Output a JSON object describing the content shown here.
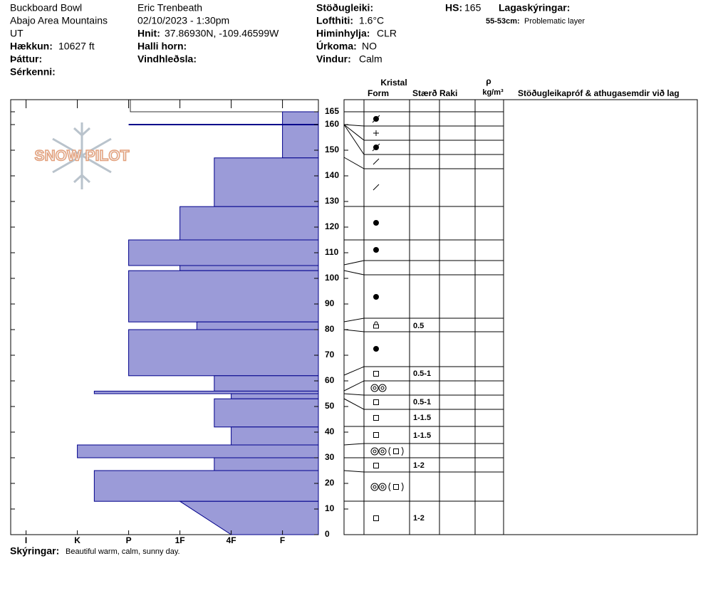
{
  "header": {
    "location": "Buckboard Bowl",
    "range": "Abajo Area Mountains",
    "state": "UT",
    "elevation_label": "Hækkun:",
    "elevation": "10627 ft",
    "aspect_label": "Þáttur:",
    "features_label": "Sérkenni:",
    "observer": "Eric Trenbeath",
    "datetime": "02/10/2023 - 1:30pm",
    "coords_label": "Hnit:",
    "coords": "37.86930N, -109.46599W",
    "slope_label": "Halli horn:",
    "wind_loading_label": "Vindhleðsla:",
    "stability_label": "Stöðugleiki:",
    "air_temp_label": "Lofthiti:",
    "air_temp": "1.6°C",
    "sky_label": "Himinhylja:",
    "sky": "CLR",
    "precip_label": "Úrkoma:",
    "precip": "NO",
    "wind_label": "Vindur:",
    "wind": "Calm",
    "hs_label": "HS:",
    "hs": 165,
    "layer_notes_label": "Lagaskýringar:",
    "layer_notes": [
      {
        "range": "55-53cm:",
        "text": "Problematic layer"
      }
    ]
  },
  "logo": "SNOW PILOT",
  "chart_data": {
    "type": "snowprofile",
    "color": "#9b9bd8",
    "edge_color": "#00008b",
    "ylim": [
      0,
      170
    ],
    "yticks": [
      0,
      10,
      20,
      30,
      40,
      50,
      60,
      70,
      80,
      90,
      100,
      110,
      120,
      130,
      140,
      150,
      160,
      165
    ],
    "xlim": [
      6.3,
      0.3
    ],
    "xticks": [
      {
        "value": 6,
        "label": "I"
      },
      {
        "value": 5,
        "label": "K"
      },
      {
        "value": 4,
        "label": "P"
      },
      {
        "value": 3,
        "label": "1F"
      },
      {
        "value": 2,
        "label": "4F"
      },
      {
        "value": 1,
        "label": "F"
      }
    ],
    "layers": [
      {
        "top": 165,
        "bottom": 147,
        "hardness": 1
      },
      {
        "top": 160,
        "bottom": 160,
        "hardness": 4
      },
      {
        "top": 147,
        "bottom": 128,
        "hardness": 2.33
      },
      {
        "top": 128,
        "bottom": 115,
        "hardness": 3
      },
      {
        "top": 115,
        "bottom": 105,
        "hardness": 4
      },
      {
        "top": 105,
        "bottom": 103,
        "hardness": 3
      },
      {
        "top": 103,
        "bottom": 83,
        "hardness": 4
      },
      {
        "top": 83,
        "bottom": 80,
        "hardness": 2.67
      },
      {
        "top": 80,
        "bottom": 62,
        "hardness": 4
      },
      {
        "top": 62,
        "bottom": 56,
        "hardness": 2.33
      },
      {
        "top": 56,
        "bottom": 55,
        "hardness": 4.67
      },
      {
        "top": 55,
        "bottom": 53,
        "hardness": 2
      },
      {
        "top": 53,
        "bottom": 42,
        "hardness": 2.33
      },
      {
        "top": 42,
        "bottom": 35,
        "hardness": 2
      },
      {
        "top": 35,
        "bottom": 30,
        "hardness": 5
      },
      {
        "top": 30,
        "bottom": 25,
        "hardness": 2.33
      },
      {
        "top": 25,
        "bottom": 13,
        "hardness": 4.67
      },
      {
        "top": 13,
        "bottom": 0,
        "hardness": 3,
        "hardness_bottom": 2
      }
    ]
  },
  "table": {
    "headers": {
      "crystal": "Kristal",
      "form": "Form",
      "size": "Stærð",
      "moisture": "Raki",
      "density_symbol": "ρ",
      "density_unit": "kg/m³",
      "comments": "Stöðugleikapróf & athugasemdir við lag"
    },
    "sizes": [
      "0.5",
      "0.5-1",
      "0.5-1",
      "1-1.5",
      "1-1.5",
      "1-2",
      "1-2"
    ]
  },
  "footer": {
    "label": "Skýringar:",
    "text": "Beautiful warm, calm, sunny day."
  }
}
